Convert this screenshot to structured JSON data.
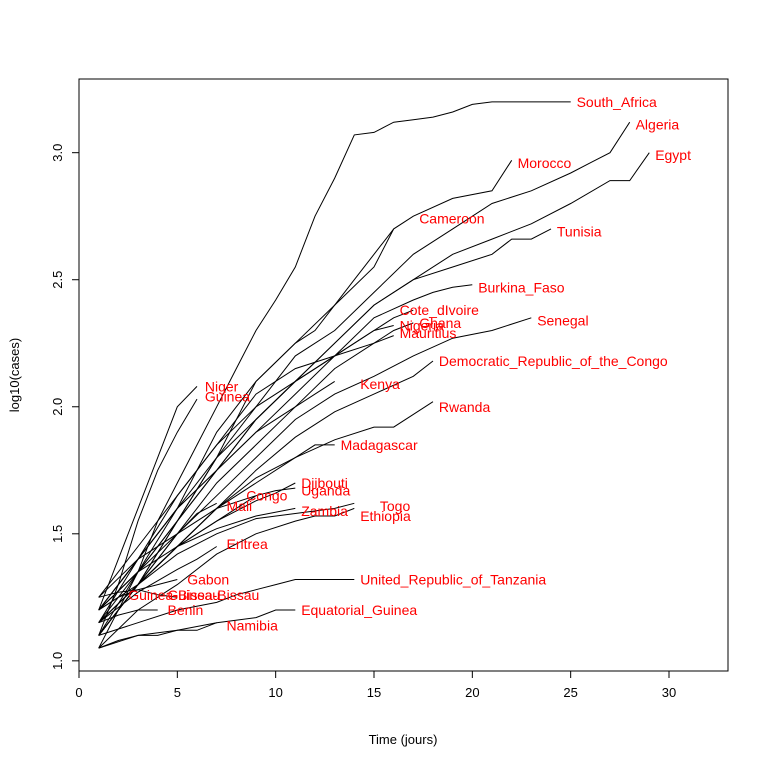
{
  "chart_data": {
    "type": "line",
    "title": "",
    "xlabel": "Time (jours)",
    "ylabel": "log10(cases)",
    "xlim": [
      0,
      33
    ],
    "ylim": [
      0.96,
      3.29
    ],
    "xticks": [
      0,
      5,
      10,
      15,
      20,
      25,
      30
    ],
    "yticks": [
      1.0,
      1.5,
      2.0,
      2.5,
      3.0
    ],
    "grid": false,
    "label_color": "#ff0000",
    "line_color": "#000000",
    "series": [
      {
        "name": "South_Africa",
        "x": [
          1,
          2,
          3,
          4,
          5,
          6,
          7,
          8,
          9,
          10,
          11,
          12,
          13,
          14,
          15,
          16,
          17,
          18,
          19,
          20,
          21,
          22,
          23,
          24,
          25
        ],
        "y": [
          1.05,
          1.2,
          1.35,
          1.55,
          1.7,
          1.85,
          2.0,
          2.15,
          2.3,
          2.42,
          2.55,
          2.75,
          2.9,
          3.07,
          3.08,
          3.12,
          3.13,
          3.14,
          3.16,
          3.19,
          3.2,
          3.2,
          3.2,
          3.2,
          3.2
        ]
      },
      {
        "name": "Algeria",
        "x": [
          1,
          3,
          5,
          7,
          9,
          11,
          13,
          15,
          17,
          19,
          21,
          23,
          25,
          26,
          27,
          28
        ],
        "y": [
          1.1,
          1.3,
          1.55,
          1.8,
          2.0,
          2.2,
          2.3,
          2.45,
          2.6,
          2.7,
          2.8,
          2.85,
          2.92,
          2.96,
          3.0,
          3.12
        ]
      },
      {
        "name": "Egypt",
        "x": [
          1,
          3,
          5,
          7,
          9,
          11,
          13,
          15,
          17,
          19,
          21,
          23,
          25,
          27,
          28,
          29
        ],
        "y": [
          1.2,
          1.4,
          1.6,
          1.8,
          1.95,
          2.1,
          2.25,
          2.4,
          2.5,
          2.6,
          2.66,
          2.72,
          2.8,
          2.89,
          2.89,
          3.0
        ]
      },
      {
        "name": "Morocco",
        "x": [
          1,
          3,
          5,
          7,
          9,
          11,
          13,
          15,
          16,
          17,
          19,
          21,
          22
        ],
        "y": [
          1.1,
          1.35,
          1.6,
          1.9,
          2.1,
          2.25,
          2.4,
          2.55,
          2.7,
          2.75,
          2.82,
          2.85,
          2.97
        ]
      },
      {
        "name": "Cameroon",
        "x": [
          1,
          3,
          5,
          7,
          9,
          11,
          12,
          13,
          14,
          15,
          16
        ],
        "y": [
          1.1,
          1.3,
          1.55,
          1.8,
          2.1,
          2.25,
          2.3,
          2.4,
          2.5,
          2.6,
          2.7
        ]
      },
      {
        "name": "Tunisia",
        "x": [
          1,
          3,
          5,
          7,
          9,
          11,
          13,
          15,
          17,
          19,
          21,
          22,
          23,
          24
        ],
        "y": [
          1.15,
          1.35,
          1.55,
          1.75,
          1.95,
          2.1,
          2.25,
          2.4,
          2.5,
          2.55,
          2.6,
          2.66,
          2.66,
          2.7
        ]
      },
      {
        "name": "Burkina_Faso",
        "x": [
          1,
          3,
          5,
          7,
          9,
          11,
          13,
          15,
          17,
          18,
          19,
          20
        ],
        "y": [
          1.2,
          1.4,
          1.6,
          1.75,
          1.9,
          2.05,
          2.2,
          2.35,
          2.42,
          2.45,
          2.47,
          2.48
        ]
      },
      {
        "name": "Cote_dIvoire",
        "x": [
          1,
          3,
          5,
          7,
          9,
          11,
          13,
          15,
          16,
          17
        ],
        "y": [
          1.15,
          1.4,
          1.65,
          1.85,
          2.0,
          2.1,
          2.2,
          2.3,
          2.35,
          2.38
        ]
      },
      {
        "name": "Ghana",
        "x": [
          1,
          3,
          5,
          7,
          9,
          11,
          13,
          15,
          16,
          17
        ],
        "y": [
          1.1,
          1.3,
          1.5,
          1.7,
          1.85,
          2.0,
          2.15,
          2.25,
          2.3,
          2.33
        ]
      },
      {
        "name": "Nigeria",
        "x": [
          1,
          3,
          5,
          7,
          9,
          11,
          13,
          15,
          16
        ],
        "y": [
          1.2,
          1.35,
          1.55,
          1.75,
          1.95,
          2.1,
          2.2,
          2.3,
          2.32
        ]
      },
      {
        "name": "Mauritius",
        "x": [
          1,
          3,
          5,
          7,
          9,
          11,
          13,
          15,
          16
        ],
        "y": [
          1.25,
          1.45,
          1.65,
          1.85,
          2.05,
          2.15,
          2.2,
          2.25,
          2.28
        ]
      },
      {
        "name": "Senegal",
        "x": [
          1,
          3,
          5,
          7,
          9,
          11,
          13,
          15,
          17,
          19,
          21,
          23
        ],
        "y": [
          1.15,
          1.3,
          1.5,
          1.65,
          1.8,
          1.95,
          2.05,
          2.12,
          2.2,
          2.27,
          2.3,
          2.35
        ]
      },
      {
        "name": "Democratic_Republic_of_the_Congo",
        "x": [
          1,
          3,
          5,
          7,
          9,
          11,
          13,
          15,
          17,
          18
        ],
        "y": [
          1.1,
          1.3,
          1.45,
          1.6,
          1.75,
          1.88,
          1.98,
          2.05,
          2.12,
          2.18
        ]
      },
      {
        "name": "Niger",
        "x": [
          1,
          2,
          3,
          4,
          5,
          6
        ],
        "y": [
          1.2,
          1.4,
          1.6,
          1.8,
          2.0,
          2.08
        ]
      },
      {
        "name": "Guinea",
        "x": [
          1,
          2,
          3,
          4,
          5,
          6
        ],
        "y": [
          1.1,
          1.3,
          1.55,
          1.75,
          1.9,
          2.03
        ]
      },
      {
        "name": "Kenya",
        "x": [
          1,
          3,
          5,
          7,
          9,
          11,
          12,
          13
        ],
        "y": [
          1.2,
          1.4,
          1.6,
          1.75,
          1.9,
          2.0,
          2.05,
          2.1
        ]
      },
      {
        "name": "Rwanda",
        "x": [
          1,
          3,
          5,
          7,
          9,
          11,
          13,
          15,
          16,
          17,
          18
        ],
        "y": [
          1.1,
          1.3,
          1.45,
          1.6,
          1.72,
          1.8,
          1.87,
          1.92,
          1.92,
          1.97,
          2.02
        ]
      },
      {
        "name": "Madagascar",
        "x": [
          1,
          3,
          5,
          7,
          9,
          11,
          12,
          13
        ],
        "y": [
          1.15,
          1.3,
          1.45,
          1.6,
          1.7,
          1.8,
          1.85,
          1.85
        ]
      },
      {
        "name": "Djibouti",
        "x": [
          1,
          3,
          5,
          7,
          9,
          10,
          11
        ],
        "y": [
          1.2,
          1.3,
          1.45,
          1.55,
          1.63,
          1.66,
          1.7
        ]
      },
      {
        "name": "Uganda",
        "x": [
          1,
          3,
          5,
          7,
          9,
          10,
          11
        ],
        "y": [
          1.2,
          1.35,
          1.5,
          1.6,
          1.65,
          1.67,
          1.68
        ]
      },
      {
        "name": "Congo",
        "x": [
          1,
          3,
          5,
          7,
          8,
          9
        ],
        "y": [
          1.15,
          1.3,
          1.45,
          1.55,
          1.6,
          1.65
        ]
      },
      {
        "name": "Mali",
        "x": [
          1,
          3,
          5,
          6,
          7
        ],
        "y": [
          1.25,
          1.4,
          1.5,
          1.58,
          1.62
        ]
      },
      {
        "name": "Togo",
        "x": [
          1,
          3,
          5,
          7,
          9,
          11,
          13,
          14
        ],
        "y": [
          1.15,
          1.3,
          1.42,
          1.5,
          1.56,
          1.58,
          1.6,
          1.62
        ]
      },
      {
        "name": "Zambia",
        "x": [
          1,
          3,
          5,
          7,
          9,
          11
        ],
        "y": [
          1.2,
          1.35,
          1.45,
          1.52,
          1.57,
          1.6
        ]
      },
      {
        "name": "Ethiopia",
        "x": [
          1,
          3,
          5,
          7,
          9,
          11,
          12,
          13,
          14
        ],
        "y": [
          1.05,
          1.2,
          1.3,
          1.42,
          1.5,
          1.55,
          1.57,
          1.57,
          1.6
        ]
      },
      {
        "name": "Eritrea",
        "x": [
          1,
          3,
          5,
          6,
          7
        ],
        "y": [
          1.15,
          1.27,
          1.36,
          1.4,
          1.45
        ]
      },
      {
        "name": "Gabon",
        "x": [
          1,
          2,
          3,
          4,
          5
        ],
        "y": [
          1.2,
          1.25,
          1.28,
          1.3,
          1.32
        ]
      },
      {
        "name": "United_Republic_of_Tanzania",
        "x": [
          1,
          3,
          5,
          7,
          8,
          9,
          10,
          11,
          12,
          13,
          14
        ],
        "y": [
          1.1,
          1.15,
          1.2,
          1.23,
          1.26,
          1.28,
          1.3,
          1.32,
          1.32,
          1.32,
          1.32
        ]
      },
      {
        "name": "Guinea-Bissau",
        "x": [
          1,
          2,
          3,
          4,
          5
        ],
        "y": [
          1.25,
          1.27,
          1.28,
          1.26,
          1.25
        ]
      },
      {
        "name": "Benin",
        "x": [
          1,
          2,
          3,
          4
        ],
        "y": [
          1.15,
          1.18,
          1.2,
          1.2
        ]
      },
      {
        "name": "Namibia",
        "x": [
          1,
          2,
          3,
          4,
          5,
          6,
          7
        ],
        "y": [
          1.05,
          1.08,
          1.1,
          1.1,
          1.12,
          1.12,
          1.15
        ]
      },
      {
        "name": "Equatorial_Guinea",
        "x": [
          1,
          3,
          5,
          7,
          9,
          10,
          11
        ],
        "y": [
          1.05,
          1.1,
          1.12,
          1.15,
          1.17,
          1.2,
          1.2
        ]
      }
    ],
    "annotations": [
      {
        "text": "South_Africa",
        "x": 25.3,
        "y": 3.2
      },
      {
        "text": "Algeria",
        "x": 28.3,
        "y": 3.11
      },
      {
        "text": "Egypt",
        "x": 29.3,
        "y": 2.99
      },
      {
        "text": "Morocco",
        "x": 22.3,
        "y": 2.96
      },
      {
        "text": "Cameroon",
        "x": 17.3,
        "y": 2.74
      },
      {
        "text": "Tunisia",
        "x": 24.3,
        "y": 2.69
      },
      {
        "text": "Burkina_Faso",
        "x": 20.3,
        "y": 2.47
      },
      {
        "text": "Cote_dIvoire",
        "x": 16.3,
        "y": 2.38
      },
      {
        "text": "Ghana",
        "x": 17.3,
        "y": 2.33
      },
      {
        "text": "Nigeria",
        "x": 16.3,
        "y": 2.32
      },
      {
        "text": "Mauritius",
        "x": 16.3,
        "y": 2.29
      },
      {
        "text": "Senegal",
        "x": 23.3,
        "y": 2.34
      },
      {
        "text": "Democratic_Republic_of_the_Congo",
        "x": 18.3,
        "y": 2.18
      },
      {
        "text": "Niger",
        "x": 6.4,
        "y": 2.08
      },
      {
        "text": "Guinea",
        "x": 6.4,
        "y": 2.04
      },
      {
        "text": "Kenya",
        "x": 14.3,
        "y": 2.09
      },
      {
        "text": "Rwanda",
        "x": 18.3,
        "y": 2.0
      },
      {
        "text": "Madagascar",
        "x": 13.3,
        "y": 1.85
      },
      {
        "text": "Djibouti",
        "x": 11.3,
        "y": 1.7
      },
      {
        "text": "Uganda",
        "x": 11.3,
        "y": 1.67
      },
      {
        "text": "Congo",
        "x": 8.5,
        "y": 1.65
      },
      {
        "text": "Mali",
        "x": 7.5,
        "y": 1.61
      },
      {
        "text": "Togo",
        "x": 15.3,
        "y": 1.61
      },
      {
        "text": "Zambia",
        "x": 11.3,
        "y": 1.59
      },
      {
        "text": "Ethiopia",
        "x": 14.3,
        "y": 1.57
      },
      {
        "text": "Eritrea",
        "x": 7.5,
        "y": 1.46
      },
      {
        "text": "Gabon",
        "x": 5.5,
        "y": 1.32
      },
      {
        "text": "United_Republic_of_Tanzania",
        "x": 14.3,
        "y": 1.32
      },
      {
        "text": "Guinea-Bissau",
        "x": 2.5,
        "y": 1.26
      },
      {
        "text": "Guinea-Bissau",
        "x": 4.5,
        "y": 1.26
      },
      {
        "text": "Benin",
        "x": 4.5,
        "y": 1.2
      },
      {
        "text": "Namibia",
        "x": 7.5,
        "y": 1.14
      },
      {
        "text": "Equatorial_Guinea",
        "x": 11.3,
        "y": 1.2
      }
    ]
  }
}
